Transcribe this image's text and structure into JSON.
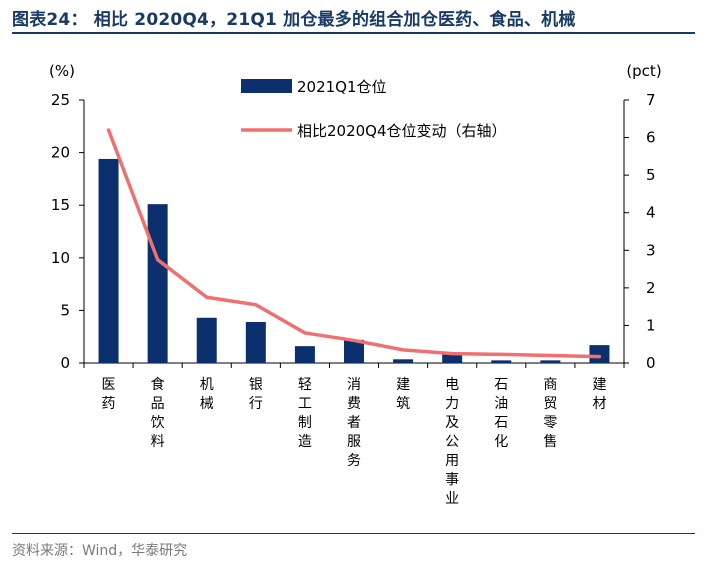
{
  "header": {
    "title": "图表24：  相比 2020Q4，21Q1 加仓最多的组合加仓医药、食品、机械"
  },
  "footer": {
    "source": "资料来源：Wind，华泰研究"
  },
  "chart_data": {
    "type": "bar+line",
    "categories": [
      "医药",
      "食品饮料",
      "机械",
      "银行",
      "轻工制造",
      "消费者服务",
      "建筑",
      "电力及公用事业",
      "石油石化",
      "商贸零售",
      "建材"
    ],
    "series": [
      {
        "name": "2021Q1仓位",
        "type": "bar",
        "axis": "left",
        "color": "#0c2f6e",
        "values": [
          19.4,
          15.1,
          4.3,
          3.9,
          1.6,
          2.2,
          0.35,
          0.9,
          0.25,
          0.25,
          1.7
        ]
      },
      {
        "name": "相比2020Q4仓位变动（右轴）",
        "type": "line",
        "axis": "right",
        "color": "#f07070",
        "values": [
          6.2,
          2.75,
          1.75,
          1.55,
          0.8,
          0.6,
          0.35,
          0.25,
          0.23,
          0.2,
          0.17
        ]
      }
    ],
    "y_left": {
      "unit": "(%)",
      "ylim": [
        0,
        25
      ],
      "ticks": [
        0,
        5,
        10,
        15,
        20,
        25
      ]
    },
    "y_right": {
      "unit": "(pct)",
      "ylim": [
        0,
        7
      ],
      "ticks": [
        0,
        1,
        2,
        3,
        4,
        5,
        6,
        7
      ]
    },
    "legend": {
      "placement": "top-center"
    },
    "grid": false
  }
}
